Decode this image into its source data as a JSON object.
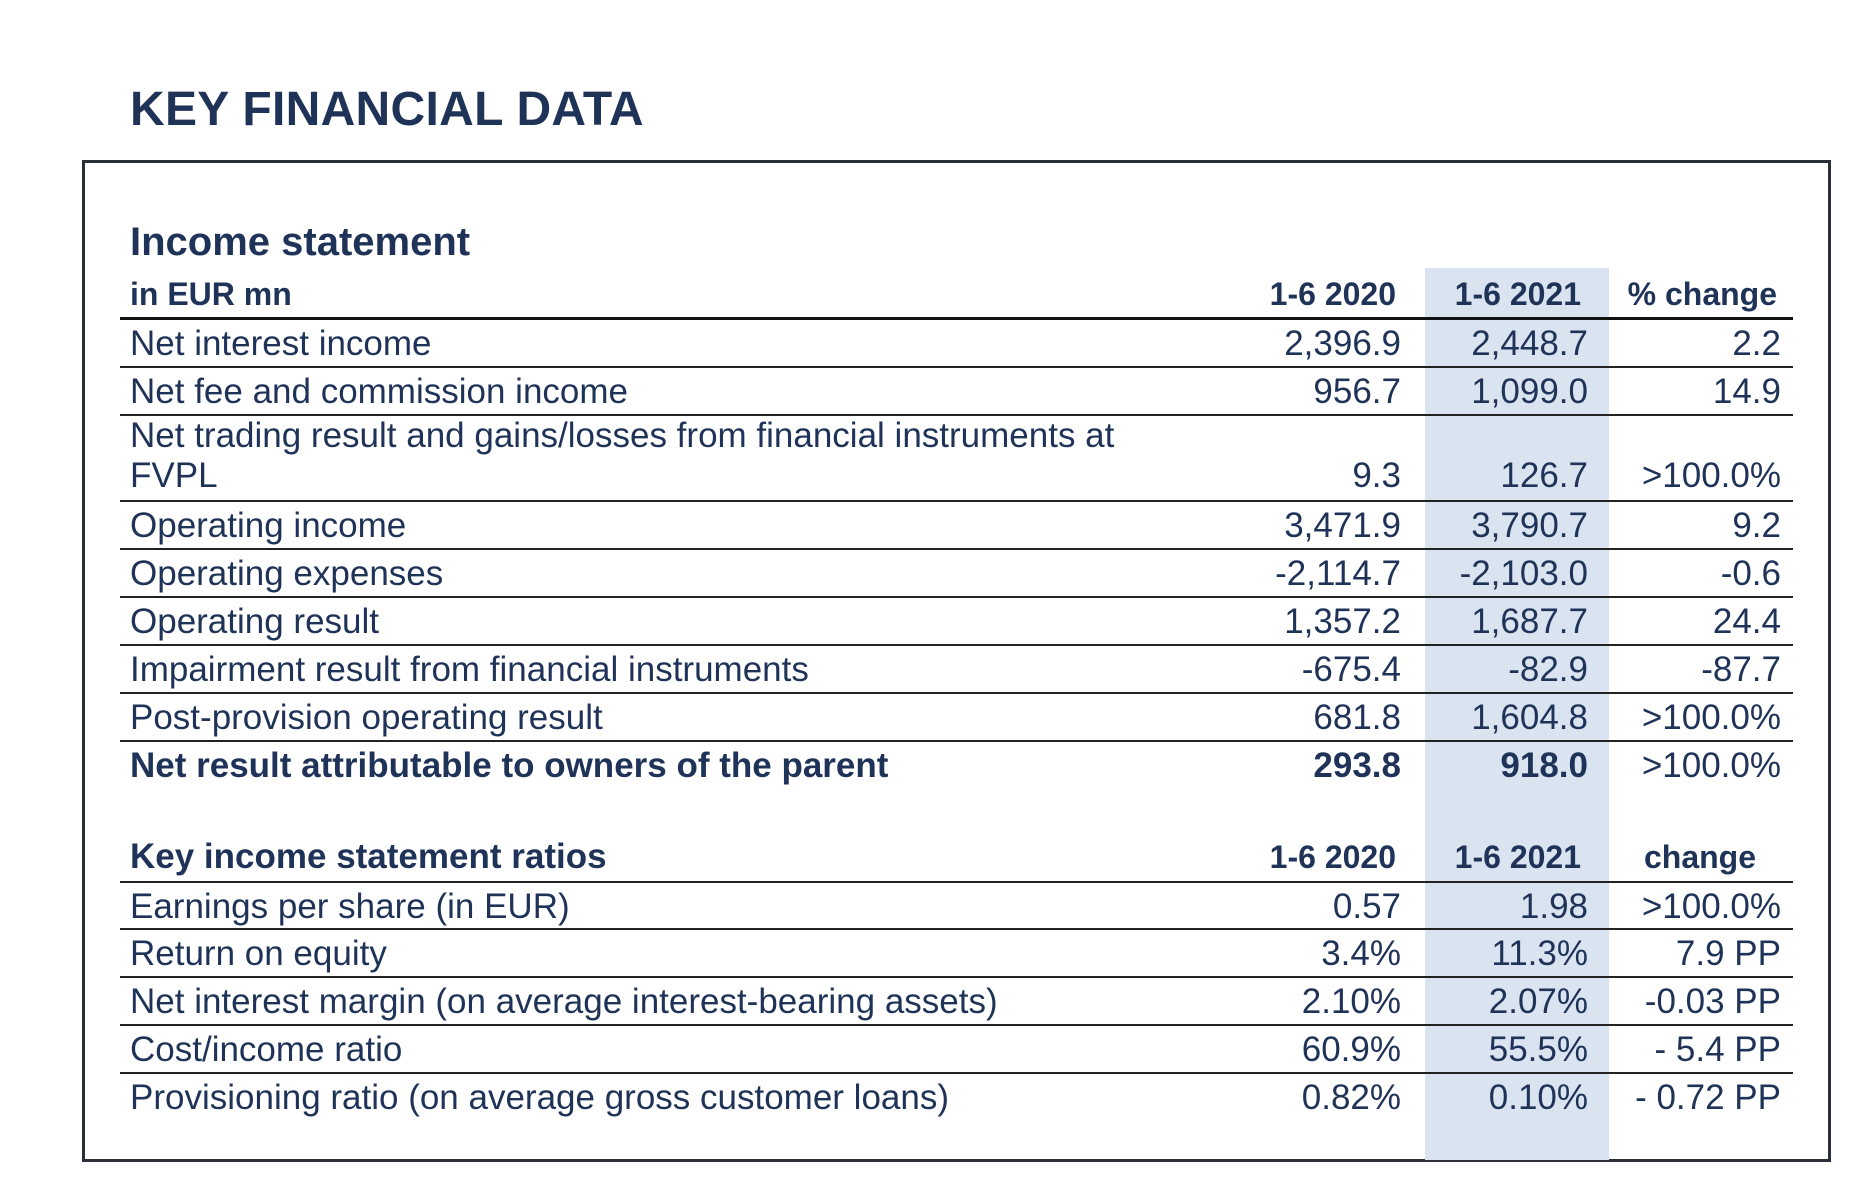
{
  "page_title": "KEY FINANCIAL DATA",
  "income_statement": {
    "title": "Income statement",
    "unit_label": "in EUR mn",
    "columns": [
      "1-6 2020",
      "1-6 2021",
      "% change"
    ],
    "rows": [
      {
        "label": "Net interest income",
        "v2020": "2,396.9",
        "v2021": "2,448.7",
        "change": "2.2"
      },
      {
        "label": "Net fee and commission income",
        "v2020": "956.7",
        "v2021": "1,099.0",
        "change": "14.9"
      },
      {
        "label": "Net trading result and gains/losses from financial instruments at FVPL",
        "v2020": "9.3",
        "v2021": "126.7",
        "change": ">100.0%"
      },
      {
        "label": "Operating income",
        "v2020": "3,471.9",
        "v2021": "3,790.7",
        "change": "9.2"
      },
      {
        "label": "Operating expenses",
        "v2020": "-2,114.7",
        "v2021": "-2,103.0",
        "change": "-0.6"
      },
      {
        "label": "Operating result",
        "v2020": "1,357.2",
        "v2021": "1,687.7",
        "change": "24.4"
      },
      {
        "label": "Impairment result from financial instruments",
        "v2020": "-675.4",
        "v2021": "-82.9",
        "change": "-87.7"
      },
      {
        "label": "Post-provision operating result",
        "v2020": "681.8",
        "v2021": "1,604.8",
        "change": ">100.0%"
      },
      {
        "label": "Net result attributable to owners of the parent",
        "v2020": "293.8",
        "v2021": "918.0",
        "change": ">100.0%"
      }
    ]
  },
  "ratios": {
    "title": "Key income statement ratios",
    "columns": [
      "1-6 2020",
      "1-6 2021",
      "change"
    ],
    "rows": [
      {
        "label": "Earnings per share (in EUR)",
        "v2020": "0.57",
        "v2021": "1.98",
        "change": ">100.0%"
      },
      {
        "label": "Return on equity",
        "v2020": "3.4%",
        "v2021": "11.3%",
        "change": "7.9 PP"
      },
      {
        "label": "Net interest margin (on average interest-bearing assets)",
        "v2020": "2.10%",
        "v2021": "2.07%",
        "change": "-0.03 PP"
      },
      {
        "label": "Cost/income ratio",
        "v2020": "60.9%",
        "v2021": "55.5%",
        "change": "- 5.4 PP"
      },
      {
        "label": "Provisioning ratio (on average gross customer loans)",
        "v2020": "0.82%",
        "v2021": "0.10%",
        "change": "- 0.72 PP"
      }
    ]
  },
  "colors": {
    "text": "#1f3358",
    "highlight_column": "#dae3f0",
    "frame": "#2a2f38"
  }
}
